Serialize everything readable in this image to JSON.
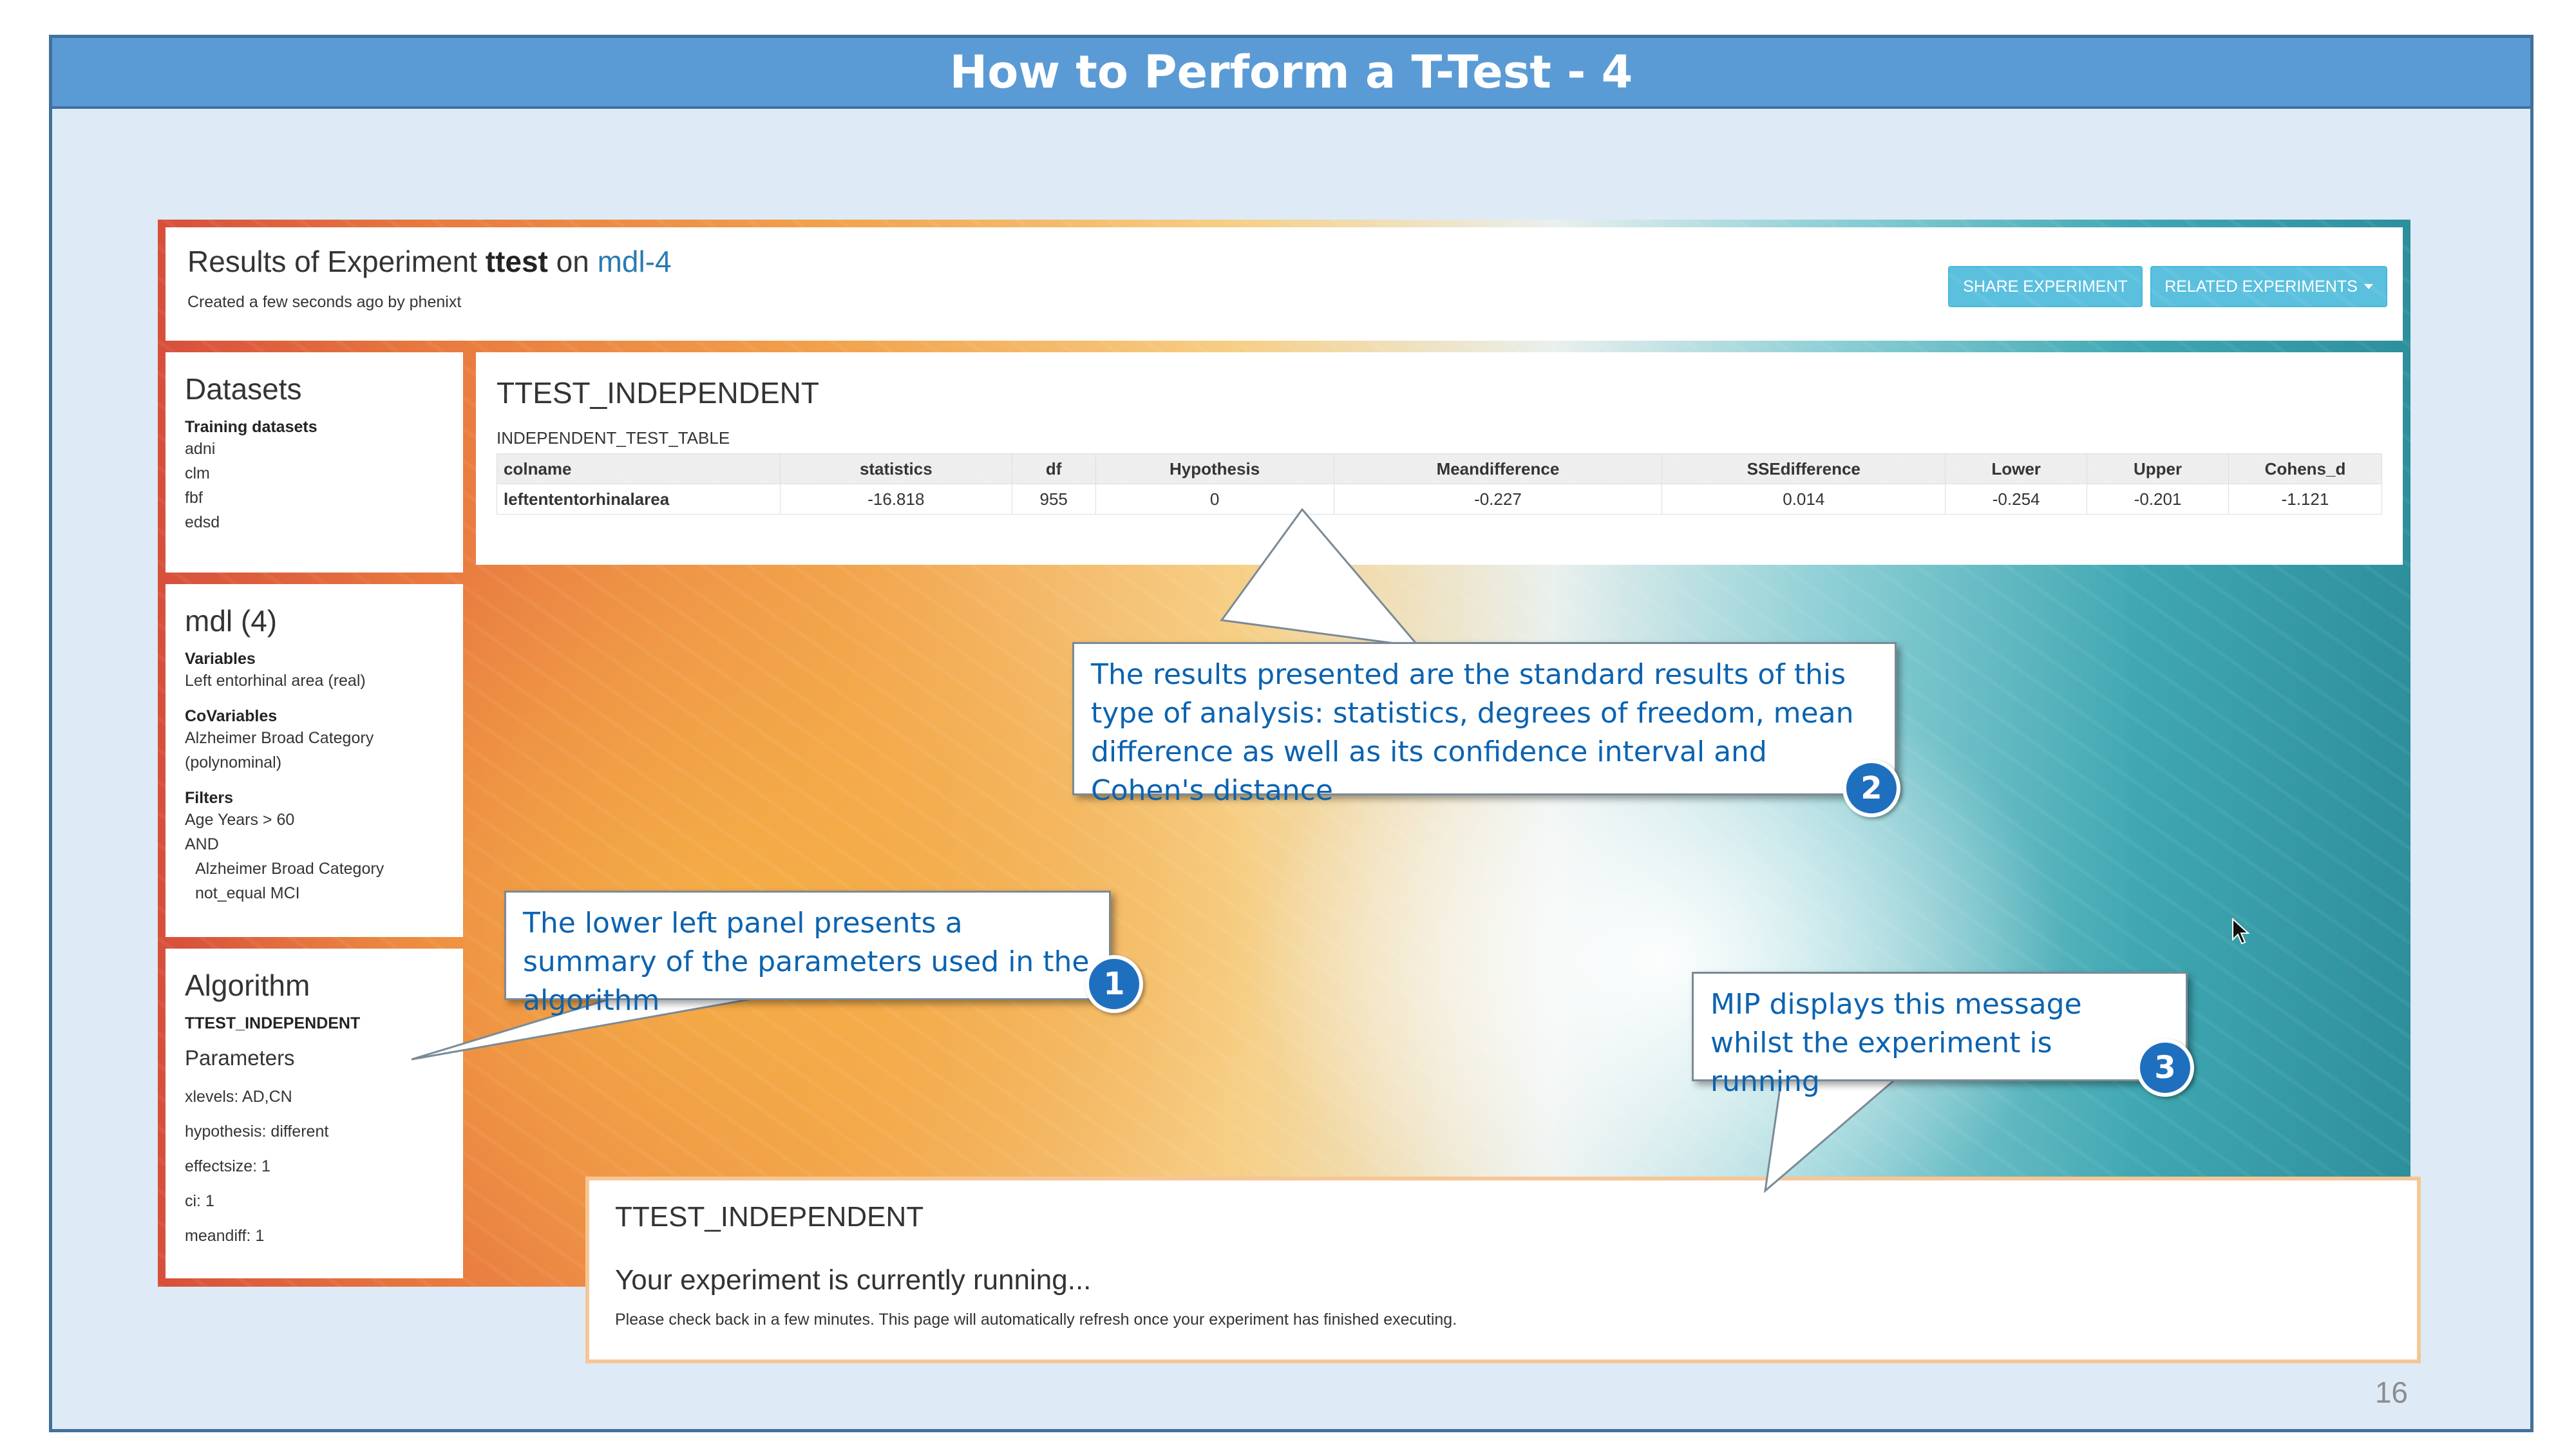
{
  "slide": {
    "title": "How to Perform a T-Test - 4",
    "page_number": "16"
  },
  "header": {
    "title_prefix": "Results of Experiment ",
    "experiment_name": "ttest",
    "title_on": " on ",
    "model_link": "mdl-4",
    "created": "Created a few seconds ago by phenixt",
    "share_button": "SHARE EXPERIMENT",
    "related_button": "RELATED EXPERIMENTS"
  },
  "datasets": {
    "title": "Datasets",
    "training_label": "Training datasets",
    "items": [
      "adni",
      "clm",
      "fbf",
      "edsd"
    ]
  },
  "model": {
    "title": "mdl (4)",
    "variables_label": "Variables",
    "variables": [
      "Left entorhinal area (real)"
    ],
    "covariables_label": "CoVariables",
    "covariables": [
      "Alzheimer Broad Category",
      "(polynominal)"
    ],
    "filters_label": "Filters",
    "filters": [
      "Age Years > 60",
      "AND",
      "Alzheimer Broad Category",
      "not_equal MCI"
    ]
  },
  "algorithm": {
    "title": "Algorithm",
    "name": "TTEST_INDEPENDENT",
    "parameters_label": "Parameters",
    "parameters": [
      "xlevels: AD,CN",
      "hypothesis: different",
      "effectsize: 1",
      "ci: 1",
      "meandiff: 1"
    ]
  },
  "results": {
    "title": "TTEST_INDEPENDENT",
    "table_name": "INDEPENDENT_TEST_TABLE",
    "columns": [
      "colname",
      "statistics",
      "df",
      "Hypothesis",
      "Meandifference",
      "SSEdifference",
      "Lower",
      "Upper",
      "Cohens_d"
    ],
    "rows": [
      [
        "leftententorhinalarea",
        "-16.818",
        "955",
        "0",
        "-0.227",
        "0.014",
        "-0.254",
        "-0.201",
        "-1.121"
      ]
    ]
  },
  "running": {
    "title": "TTEST_INDEPENDENT",
    "message": "Your experiment is currently running...",
    "note": "Please check back in a few minutes. This page will automatically refresh once your experiment has finished executing."
  },
  "callouts": [
    {
      "number": "1",
      "text": "The lower left panel presents a summary of the parameters used in the algorithm"
    },
    {
      "number": "2",
      "text": "The results presented are the standard results of this type of analysis: statistics, degrees of freedom, mean difference as well as its confidence interval and Cohen's distance"
    },
    {
      "number": "3",
      "text": "MIP displays this message whilst the experiment is running"
    }
  ],
  "icons": {
    "dropdown": "caret-down-icon",
    "cursor": "mouse-pointer-icon"
  },
  "colors": {
    "title_bar": "#5b9bd5",
    "slide_bg": "#deebf6",
    "callout_text": "#0b63b0",
    "badge": "#1f6fbf",
    "button": "#5bc0de",
    "link": "#2a7ab0"
  }
}
